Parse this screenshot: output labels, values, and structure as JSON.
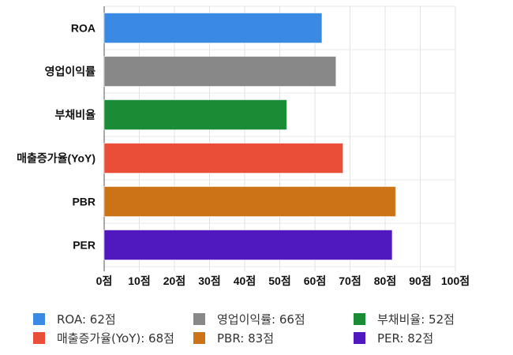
{
  "chart_data": {
    "type": "bar",
    "orientation": "horizontal",
    "categories": [
      "ROA",
      "영업이익률",
      "부채비율",
      "매출증가율(YoY)",
      "PBR",
      "PER"
    ],
    "values": [
      62,
      66,
      52,
      68,
      83,
      82
    ],
    "colors": [
      "#3a8ae4",
      "#888888",
      "#1a8c36",
      "#ea4e38",
      "#cc7318",
      "#5018bf"
    ],
    "xlim": [
      0,
      100
    ],
    "xticks": [
      "0점",
      "10점",
      "20점",
      "30점",
      "40점",
      "50점",
      "60점",
      "70점",
      "80점",
      "90점",
      "100점"
    ],
    "grid": true,
    "legend": {
      "placement": "bottom",
      "entries": [
        "ROA: 62점",
        "영업이익률: 66점",
        "부채비율: 52점",
        "매출증가율(YoY): 68점",
        "PBR: 83점",
        "PER: 82점"
      ]
    }
  }
}
